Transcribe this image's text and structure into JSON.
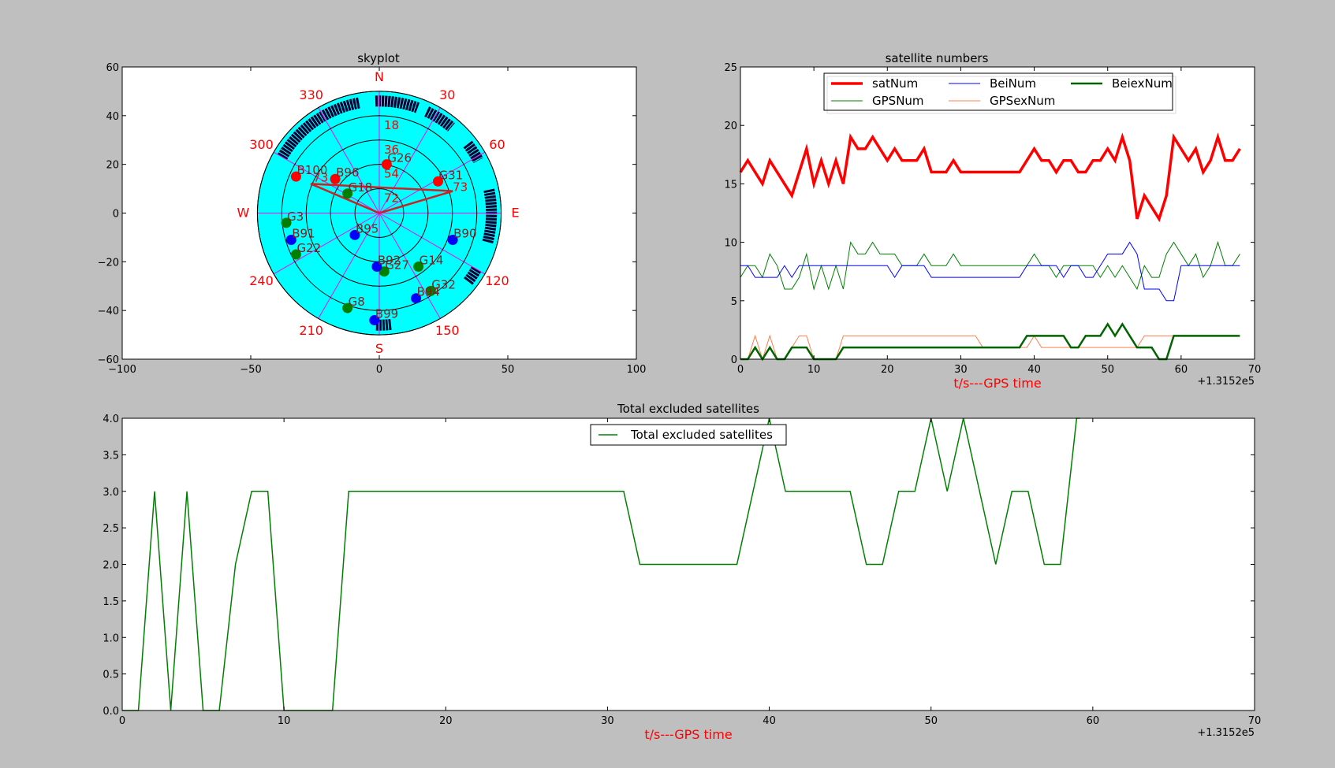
{
  "colors": {
    "figure_bg": "#bfbfbf",
    "axes_bg": "#ffffff",
    "sky_bg": "#00ffff",
    "grid_spokes": "#ff00ff",
    "rings": "#000000",
    "gps": "#008000",
    "beidou": "#0000ff",
    "excluded": "#ff0000",
    "label_red": "#ff0000",
    "track": "#000033"
  },
  "chart_data": [
    {
      "id": "skyplot",
      "type": "scatter",
      "title": "skyplot",
      "xlim": [
        -105,
        105
      ],
      "ylim": [
        -60,
        60
      ],
      "xticks": [
        "−100",
        "−50",
        "0",
        "50",
        "100"
      ],
      "yticks": [
        "60",
        "40",
        "20",
        "0",
        "−20",
        "−40",
        "−60"
      ],
      "ring_elevations": [
        18,
        36,
        54,
        72
      ],
      "ring_labels": [
        "18",
        "36",
        "54",
        "72"
      ],
      "azimuth_labels": [
        {
          "az": 0,
          "text": "N"
        },
        {
          "az": 30,
          "text": "30"
        },
        {
          "az": 60,
          "text": "60"
        },
        {
          "az": 90,
          "text": "E"
        },
        {
          "az": 120,
          "text": "120"
        },
        {
          "az": 150,
          "text": "150"
        },
        {
          "az": 180,
          "text": "S"
        },
        {
          "az": 210,
          "text": "210"
        },
        {
          "az": 240,
          "text": "240"
        },
        {
          "az": 270,
          "text": "W"
        },
        {
          "az": 300,
          "text": "300"
        },
        {
          "az": 330,
          "text": "330"
        }
      ],
      "satellites": [
        {
          "name": "G26",
          "x": 3,
          "y": 20,
          "group": "excluded"
        },
        {
          "name": "G31",
          "x": 24,
          "y": 13,
          "group": "excluded"
        },
        {
          "name": "B100",
          "x": -34,
          "y": 15,
          "group": "excluded"
        },
        {
          "name": "B96",
          "x": -18,
          "y": 14,
          "group": "excluded"
        },
        {
          "name": "G18",
          "x": -13,
          "y": 8,
          "group": "gps"
        },
        {
          "name": "G3",
          "x": -38,
          "y": -4,
          "group": "gps"
        },
        {
          "name": "G22",
          "x": -34,
          "y": -17,
          "group": "gps"
        },
        {
          "name": "G14",
          "x": 16,
          "y": -22,
          "group": "gps"
        },
        {
          "name": "G27",
          "x": 2,
          "y": -24,
          "group": "gps"
        },
        {
          "name": "G32",
          "x": 21,
          "y": -32,
          "group": "gps"
        },
        {
          "name": "G8",
          "x": -13,
          "y": -39,
          "group": "gps"
        },
        {
          "name": "B91",
          "x": -36,
          "y": -11,
          "group": "beidou"
        },
        {
          "name": "B95",
          "x": -10,
          "y": -9,
          "group": "beidou"
        },
        {
          "name": "B90",
          "x": 30,
          "y": -11,
          "group": "beidou"
        },
        {
          "name": "B92",
          "x": -1,
          "y": -22,
          "group": "beidou"
        },
        {
          "name": "B94",
          "x": 15,
          "y": -35,
          "group": "beidou"
        },
        {
          "name": "B99",
          "x": -2,
          "y": -44,
          "group": "beidou"
        }
      ],
      "faint_labels": [
        "73",
        "73"
      ],
      "lines": [
        {
          "from": [
            0,
            0
          ],
          "to": [
            -28,
            12
          ]
        },
        {
          "from": [
            0,
            0
          ],
          "to": [
            30,
            9
          ]
        },
        {
          "from": [
            -28,
            12
          ],
          "to": [
            30,
            9
          ]
        }
      ]
    },
    {
      "id": "satellite-numbers",
      "type": "line",
      "title": "satellite numbers",
      "xlabel": "t/s---GPS time",
      "x_offset_label": "+1.3152e5",
      "xlim": [
        0,
        70
      ],
      "ylim": [
        0,
        25
      ],
      "xticks": [
        "0",
        "10",
        "20",
        "30",
        "40",
        "50",
        "60",
        "70"
      ],
      "yticks": [
        "25",
        "20",
        "15",
        "10",
        "5",
        "0"
      ],
      "x_start": 0,
      "series": [
        {
          "name": "satNum",
          "color": "#ff0000",
          "width": 3.5,
          "values": [
            16,
            17,
            16,
            15,
            17,
            16,
            15,
            14,
            16,
            18,
            15,
            17,
            15,
            17,
            15,
            19,
            18,
            18,
            19,
            18,
            17,
            18,
            17,
            17,
            17,
            18,
            16,
            16,
            16,
            17,
            16,
            16,
            16,
            16,
            16,
            16,
            16,
            16,
            16,
            17,
            18,
            17,
            17,
            16,
            17,
            17,
            16,
            16,
            17,
            17,
            18,
            17,
            19,
            17,
            12,
            14,
            13,
            12,
            14,
            19,
            18,
            17,
            18,
            16,
            17,
            19,
            17,
            17,
            18
          ]
        },
        {
          "name": "BeiNum",
          "color": "#0000ff",
          "width": 1,
          "values": [
            8,
            8,
            7,
            7,
            7,
            7,
            8,
            7,
            8,
            8,
            8,
            8,
            8,
            8,
            8,
            8,
            8,
            8,
            8,
            8,
            8,
            7,
            8,
            8,
            8,
            8,
            7,
            7,
            7,
            7,
            7,
            7,
            7,
            7,
            7,
            7,
            7,
            7,
            7,
            8,
            8,
            8,
            8,
            8,
            7,
            8,
            8,
            7,
            7,
            8,
            9,
            9,
            9,
            10,
            9,
            6,
            6,
            6,
            5,
            5,
            8,
            8,
            8,
            8,
            8,
            8,
            8,
            8,
            8
          ]
        },
        {
          "name": "BeiexNum",
          "color": "#006400",
          "width": 2.5,
          "values": [
            0,
            0,
            1,
            0,
            1,
            0,
            0,
            1,
            1,
            1,
            0,
            0,
            0,
            0,
            1,
            1,
            1,
            1,
            1,
            1,
            1,
            1,
            1,
            1,
            1,
            1,
            1,
            1,
            1,
            1,
            1,
            1,
            1,
            1,
            1,
            1,
            1,
            1,
            1,
            2,
            2,
            2,
            2,
            2,
            2,
            1,
            1,
            2,
            2,
            2,
            3,
            2,
            3,
            2,
            1,
            1,
            1,
            0,
            0,
            2,
            2,
            2,
            2,
            2,
            2,
            2,
            2,
            2,
            2
          ]
        },
        {
          "name": "GPSNum",
          "color": "#008000",
          "width": 1,
          "values": [
            7,
            8,
            8,
            7,
            9,
            8,
            6,
            6,
            7,
            9,
            6,
            8,
            6,
            8,
            6,
            10,
            9,
            9,
            10,
            9,
            9,
            9,
            8,
            8,
            8,
            9,
            8,
            8,
            8,
            9,
            8,
            8,
            8,
            8,
            8,
            8,
            8,
            8,
            8,
            8,
            9,
            8,
            8,
            7,
            8,
            8,
            8,
            8,
            8,
            7,
            8,
            7,
            8,
            7,
            6,
            8,
            7,
            7,
            9,
            10,
            9,
            8,
            9,
            7,
            8,
            10,
            8,
            8,
            9
          ]
        },
        {
          "name": "GPSexNum",
          "color": "#ff7f50",
          "width": 1,
          "values": [
            0,
            0,
            2,
            0,
            2,
            0,
            0,
            1,
            2,
            2,
            0,
            0,
            0,
            0,
            2,
            2,
            2,
            2,
            2,
            2,
            2,
            2,
            2,
            2,
            2,
            2,
            2,
            2,
            2,
            2,
            2,
            2,
            2,
            1,
            1,
            1,
            1,
            1,
            1,
            1,
            2,
            1,
            1,
            1,
            1,
            1,
            1,
            1,
            1,
            1,
            1,
            1,
            1,
            1,
            1,
            2,
            2,
            2,
            2,
            2,
            2,
            2,
            2,
            2,
            2,
            2,
            2,
            2,
            2
          ]
        }
      ],
      "legend_order": [
        "satNum",
        "BeiNum",
        "BeiexNum",
        "GPSNum",
        "GPSexNum"
      ],
      "legend_placement": "top"
    },
    {
      "id": "total-excluded",
      "type": "line",
      "title": "Total excluded satellites",
      "xlabel": "t/s---GPS time",
      "x_offset_label": "+1.3152e5",
      "xlim": [
        0,
        70
      ],
      "ylim": [
        0,
        4
      ],
      "xticks": [
        "0",
        "10",
        "20",
        "30",
        "40",
        "50",
        "60",
        "70"
      ],
      "yticks": [
        "4.0",
        "3.5",
        "3.0",
        "2.5",
        "2.0",
        "1.5",
        "1.0",
        "0.5",
        "0.0"
      ],
      "series": [
        {
          "name": "Total excluded satellites",
          "color": "#008000",
          "width": 1.5,
          "points": [
            [
              0,
              0
            ],
            [
              1,
              0
            ],
            [
              2,
              3
            ],
            [
              3,
              0
            ],
            [
              4,
              3
            ],
            [
              5,
              0
            ],
            [
              6,
              0
            ],
            [
              7,
              2
            ],
            [
              8,
              3
            ],
            [
              9,
              3
            ],
            [
              10,
              0
            ],
            [
              13,
              0
            ],
            [
              14,
              3
            ],
            [
              31,
              3
            ],
            [
              32,
              2
            ],
            [
              38,
              2
            ],
            [
              40,
              4
            ],
            [
              41,
              3
            ],
            [
              45,
              3
            ],
            [
              46,
              2
            ],
            [
              47,
              2
            ],
            [
              48,
              3
            ],
            [
              49,
              3
            ],
            [
              50,
              4
            ],
            [
              51,
              3
            ],
            [
              52,
              4
            ],
            [
              54,
              2
            ],
            [
              55,
              3
            ],
            [
              56,
              3
            ],
            [
              57,
              2
            ],
            [
              58,
              2
            ],
            [
              59,
              4
            ],
            [
              59.2,
              4
            ]
          ]
        }
      ],
      "legend_placement": "top"
    }
  ]
}
